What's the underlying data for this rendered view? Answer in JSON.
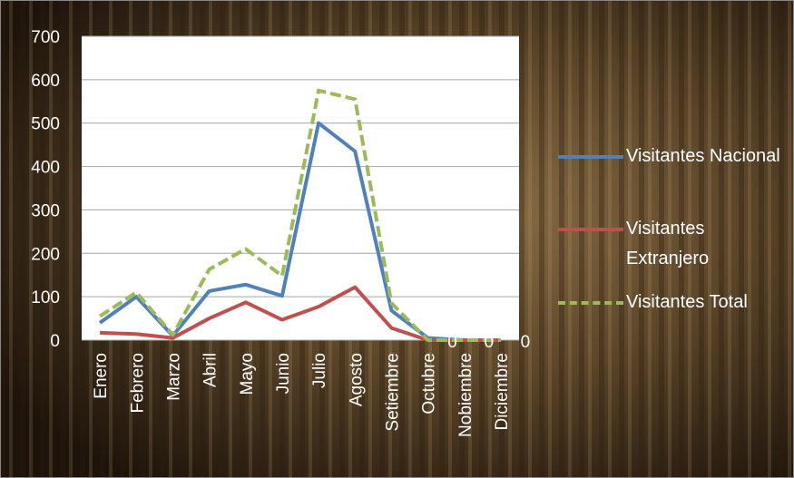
{
  "chart_data": {
    "type": "line",
    "categories": [
      "Enero",
      "Febrero",
      "Marzo",
      "Abril",
      "Mayo",
      "Junio",
      "Julio",
      "Agosto",
      "Setiembre",
      "Octubre",
      "Nobiembre",
      "Diciembre"
    ],
    "series": [
      {
        "name": "Visitantes Nacional",
        "color": "#4f81bd",
        "dash": false,
        "values": [
          40,
          100,
          10,
          113,
          128,
          102,
          500,
          435,
          68,
          5,
          0,
          0
        ]
      },
      {
        "name": "Visitantes Extranjero",
        "color": "#c0504d",
        "dash": false,
        "values": [
          17,
          14,
          5,
          50,
          87,
          47,
          77,
          122,
          28,
          0,
          0,
          0
        ]
      },
      {
        "name": "Visitantes Total",
        "color": "#9bbb59",
        "dash": true,
        "values": [
          55,
          110,
          12,
          163,
          210,
          148,
          575,
          555,
          85,
          0,
          0,
          0
        ]
      }
    ],
    "ylim": [
      0,
      700
    ],
    "yticks": [
      0,
      100,
      200,
      300,
      400,
      500,
      600,
      700
    ],
    "grid": true
  }
}
